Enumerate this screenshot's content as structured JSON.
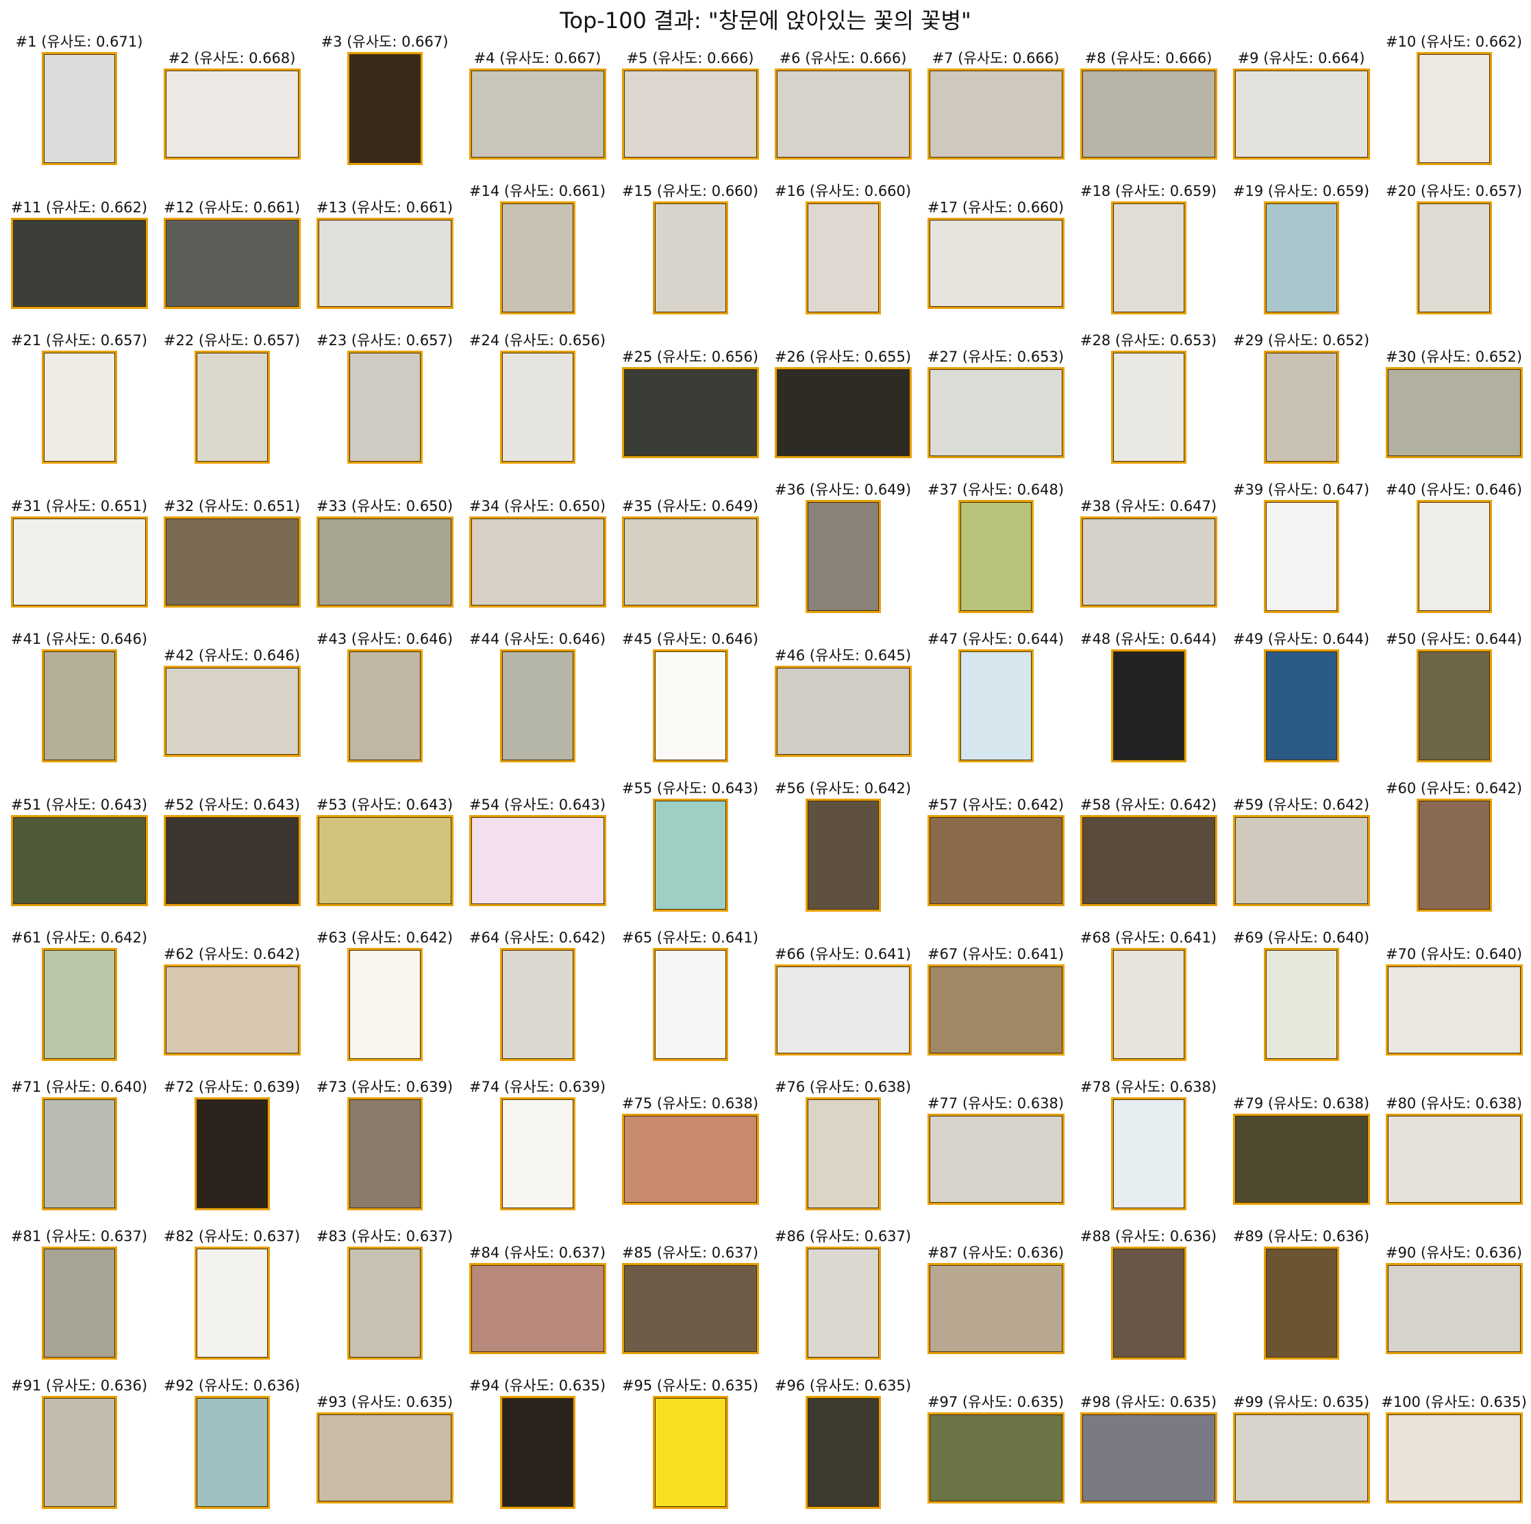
{
  "title": "Top-100 결과: \"창문에 앉아있는 꽃의 꽃병\"",
  "results": [
    {
      "label": "#1 (유사도: 0.671)",
      "orientation": "portrait",
      "tone": "#d9dcd8"
    },
    {
      "label": "#2 (유사도: 0.668)",
      "orientation": "landscape",
      "tone": "#ece9e4"
    },
    {
      "label": "#3 (유사도: 0.667)",
      "orientation": "portrait",
      "tone": "#3a2a1a"
    },
    {
      "label": "#4 (유사도: 0.667)",
      "orientation": "landscape",
      "tone": "#c9c5b8"
    },
    {
      "label": "#5 (유사도: 0.666)",
      "orientation": "landscape",
      "tone": "#dcd6cf"
    },
    {
      "label": "#6 (유사도: 0.666)",
      "orientation": "landscape",
      "tone": "#d8d2cc"
    },
    {
      "label": "#7 (유사도: 0.666)",
      "orientation": "landscape",
      "tone": "#cfc8bc"
    },
    {
      "label": "#8 (유사도: 0.666)",
      "orientation": "landscape",
      "tone": "#b8b4a8"
    },
    {
      "label": "#9 (유사도: 0.664)",
      "orientation": "landscape",
      "tone": "#e4e2dc"
    },
    {
      "label": "#10 (유사도: 0.662)",
      "orientation": "portrait",
      "tone": "#ece8e2"
    },
    {
      "label": "#11 (유사도: 0.662)",
      "orientation": "landscape",
      "tone": "#3b3f38"
    },
    {
      "label": "#12 (유사도: 0.661)",
      "orientation": "landscape",
      "tone": "#5d5e5a"
    },
    {
      "label": "#13 (유사도: 0.661)",
      "orientation": "landscape",
      "tone": "#e2e0dc"
    },
    {
      "label": "#14 (유사도: 0.661)",
      "orientation": "portrait",
      "tone": "#c8c2b2"
    },
    {
      "label": "#15 (유사도: 0.660)",
      "orientation": "portrait",
      "tone": "#d8d4cc"
    },
    {
      "label": "#16 (유사도: 0.660)",
      "orientation": "portrait",
      "tone": "#e0d8d0"
    },
    {
      "label": "#17 (유사도: 0.660)",
      "orientation": "landscape",
      "tone": "#e6e3dd"
    },
    {
      "label": "#18 (유사도: 0.659)",
      "orientation": "portrait",
      "tone": "#e0ddd6"
    },
    {
      "label": "#19 (유사도: 0.659)",
      "orientation": "portrait",
      "tone": "#a9c6cc"
    },
    {
      "label": "#20 (유사도: 0.657)",
      "orientation": "portrait",
      "tone": "#dedbd2"
    },
    {
      "label": "#21 (유사도: 0.657)",
      "orientation": "portrait",
      "tone": "#efece6"
    },
    {
      "label": "#22 (유사도: 0.657)",
      "orientation": "portrait",
      "tone": "#dcd8cc"
    },
    {
      "label": "#23 (유사도: 0.657)",
      "orientation": "portrait",
      "tone": "#cfcbc2"
    },
    {
      "label": "#24 (유사도: 0.656)",
      "orientation": "portrait",
      "tone": "#e6e4de"
    },
    {
      "label": "#25 (유사도: 0.656)",
      "orientation": "landscape",
      "tone": "#3a3c36"
    },
    {
      "label": "#26 (유사도: 0.655)",
      "orientation": "landscape",
      "tone": "#2e2a24"
    },
    {
      "label": "#27 (유사도: 0.653)",
      "orientation": "landscape",
      "tone": "#dcdcd6"
    },
    {
      "label": "#28 (유사도: 0.653)",
      "orientation": "portrait",
      "tone": "#eae8e2"
    },
    {
      "label": "#29 (유사도: 0.652)",
      "orientation": "portrait",
      "tone": "#c9c2b4"
    },
    {
      "label": "#30 (유사도: 0.652)",
      "orientation": "landscape",
      "tone": "#b2b09e"
    },
    {
      "label": "#31 (유사도: 0.651)",
      "orientation": "landscape",
      "tone": "#f0efec"
    },
    {
      "label": "#32 (유사도: 0.651)",
      "orientation": "landscape",
      "tone": "#7a6a52"
    },
    {
      "label": "#33 (유사도: 0.650)",
      "orientation": "landscape",
      "tone": "#a8a492"
    },
    {
      "label": "#34 (유사도: 0.650)",
      "orientation": "landscape",
      "tone": "#d8d0c4"
    },
    {
      "label": "#35 (유사도: 0.649)",
      "orientation": "landscape",
      "tone": "#d6d0c2"
    },
    {
      "label": "#36 (유사도: 0.649)",
      "orientation": "portrait",
      "tone": "#8a8278"
    },
    {
      "label": "#37 (유사도: 0.648)",
      "orientation": "portrait",
      "tone": "#b7c47a"
    },
    {
      "label": "#38 (유사도: 0.647)",
      "orientation": "landscape",
      "tone": "#d6d2ca"
    },
    {
      "label": "#39 (유사도: 0.647)",
      "orientation": "portrait",
      "tone": "#f4f3f1"
    },
    {
      "label": "#40 (유사도: 0.646)",
      "orientation": "portrait",
      "tone": "#efedea"
    },
    {
      "label": "#41 (유사도: 0.646)",
      "orientation": "portrait",
      "tone": "#b4ae98"
    },
    {
      "label": "#42 (유사도: 0.646)",
      "orientation": "landscape",
      "tone": "#d8d2c8"
    },
    {
      "label": "#43 (유사도: 0.646)",
      "orientation": "portrait",
      "tone": "#bfb6a4"
    },
    {
      "label": "#44 (유사도: 0.646)",
      "orientation": "portrait",
      "tone": "#b6b6a8"
    },
    {
      "label": "#45 (유사도: 0.646)",
      "orientation": "portrait",
      "tone": "#fbfaf6"
    },
    {
      "label": "#46 (유사도: 0.645)",
      "orientation": "landscape",
      "tone": "#d0ccc6"
    },
    {
      "label": "#47 (유사도: 0.644)",
      "orientation": "portrait",
      "tone": "#d6e6ee"
    },
    {
      "label": "#48 (유사도: 0.644)",
      "orientation": "portrait",
      "tone": "#232323"
    },
    {
      "label": "#49 (유사도: 0.644)",
      "orientation": "portrait",
      "tone": "#2a5a86"
    },
    {
      "label": "#50 (유사도: 0.644)",
      "orientation": "portrait",
      "tone": "#6e6448"
    },
    {
      "label": "#51 (유사도: 0.643)",
      "orientation": "landscape",
      "tone": "#4e5a38"
    },
    {
      "label": "#52 (유사도: 0.643)",
      "orientation": "landscape",
      "tone": "#3c3530"
    },
    {
      "label": "#53 (유사도: 0.643)",
      "orientation": "landscape",
      "tone": "#d2c47a"
    },
    {
      "label": "#54 (유사도: 0.643)",
      "orientation": "landscape",
      "tone": "#f3dfee"
    },
    {
      "label": "#55 (유사도: 0.643)",
      "orientation": "portrait",
      "tone": "#9dcfc4"
    },
    {
      "label": "#56 (유사도: 0.642)",
      "orientation": "portrait",
      "tone": "#5e5140"
    },
    {
      "label": "#57 (유사도: 0.642)",
      "orientation": "landscape",
      "tone": "#8a6a4a"
    },
    {
      "label": "#58 (유사도: 0.642)",
      "orientation": "landscape",
      "tone": "#5a4c3c"
    },
    {
      "label": "#59 (유사도: 0.642)",
      "orientation": "landscape",
      "tone": "#cfcabd"
    },
    {
      "label": "#60 (유사도: 0.642)",
      "orientation": "portrait",
      "tone": "#8a6a52"
    },
    {
      "label": "#61 (유사도: 0.642)",
      "orientation": "portrait",
      "tone": "#b8c8a8"
    },
    {
      "label": "#62 (유사도: 0.642)",
      "orientation": "landscape",
      "tone": "#d8c8b2"
    },
    {
      "label": "#63 (유사도: 0.642)",
      "orientation": "portrait",
      "tone": "#f8f6ee"
    },
    {
      "label": "#64 (유사도: 0.642)",
      "orientation": "portrait",
      "tone": "#dcd8d0"
    },
    {
      "label": "#65 (유사도: 0.641)",
      "orientation": "portrait",
      "tone": "#f6f5f3"
    },
    {
      "label": "#66 (유사도: 0.641)",
      "orientation": "landscape",
      "tone": "#eaeae8"
    },
    {
      "label": "#67 (유사도: 0.641)",
      "orientation": "landscape",
      "tone": "#a08866"
    },
    {
      "label": "#68 (유사도: 0.641)",
      "orientation": "portrait",
      "tone": "#e8e4dc"
    },
    {
      "label": "#69 (유사도: 0.640)",
      "orientation": "portrait",
      "tone": "#e6e8dc"
    },
    {
      "label": "#70 (유사도: 0.640)",
      "orientation": "landscape",
      "tone": "#eae6e0"
    },
    {
      "label": "#71 (유사도: 0.640)",
      "orientation": "portrait",
      "tone": "#b9bcb2"
    },
    {
      "label": "#72 (유사도: 0.639)",
      "orientation": "portrait",
      "tone": "#2c231c"
    },
    {
      "label": "#73 (유사도: 0.639)",
      "orientation": "portrait",
      "tone": "#8a7c6c"
    },
    {
      "label": "#74 (유사도: 0.639)",
      "orientation": "portrait",
      "tone": "#f8f6f0"
    },
    {
      "label": "#75 (유사도: 0.638)",
      "orientation": "landscape",
      "tone": "#c88a6c"
    },
    {
      "label": "#76 (유사도: 0.638)",
      "orientation": "portrait",
      "tone": "#dcd4c4"
    },
    {
      "label": "#77 (유사도: 0.638)",
      "orientation": "landscape",
      "tone": "#d8d4cc"
    },
    {
      "label": "#78 (유사도: 0.638)",
      "orientation": "portrait",
      "tone": "#e6eef2"
    },
    {
      "label": "#79 (유사도: 0.638)",
      "orientation": "landscape",
      "tone": "#4e4a30"
    },
    {
      "label": "#80 (유사도: 0.638)",
      "orientation": "landscape",
      "tone": "#e6e2da"
    },
    {
      "label": "#81 (유사도: 0.637)",
      "orientation": "portrait",
      "tone": "#a8a494"
    },
    {
      "label": "#82 (유사도: 0.637)",
      "orientation": "portrait",
      "tone": "#f4f2ee"
    },
    {
      "label": "#83 (유사도: 0.637)",
      "orientation": "portrait",
      "tone": "#c8c0b0"
    },
    {
      "label": "#84 (유사도: 0.637)",
      "orientation": "landscape",
      "tone": "#b8887a"
    },
    {
      "label": "#85 (유사도: 0.637)",
      "orientation": "landscape",
      "tone": "#6e5c48"
    },
    {
      "label": "#86 (유사도: 0.637)",
      "orientation": "portrait",
      "tone": "#dcd8d0"
    },
    {
      "label": "#87 (유사도: 0.636)",
      "orientation": "landscape",
      "tone": "#b8a892"
    },
    {
      "label": "#88 (유사도: 0.636)",
      "orientation": "portrait",
      "tone": "#6a5646"
    },
    {
      "label": "#89 (유사도: 0.636)",
      "orientation": "portrait",
      "tone": "#6a5432"
    },
    {
      "label": "#90 (유사도: 0.636)",
      "orientation": "landscape",
      "tone": "#d6d2cc"
    },
    {
      "label": "#91 (유사도: 0.636)",
      "orientation": "portrait",
      "tone": "#c2bcae"
    },
    {
      "label": "#92 (유사도: 0.636)",
      "orientation": "portrait",
      "tone": "#9ec0c0"
    },
    {
      "label": "#93 (유사도: 0.635)",
      "orientation": "landscape",
      "tone": "#c8bca6"
    },
    {
      "label": "#94 (유사도: 0.635)",
      "orientation": "portrait",
      "tone": "#2a231c"
    },
    {
      "label": "#95 (유사도: 0.635)",
      "orientation": "portrait",
      "tone": "#f6e020"
    },
    {
      "label": "#96 (유사도: 0.635)",
      "orientation": "portrait",
      "tone": "#3e3a30"
    },
    {
      "label": "#97 (유사도: 0.635)",
      "orientation": "landscape",
      "tone": "#6a7446"
    },
    {
      "label": "#98 (유사도: 0.635)",
      "orientation": "landscape",
      "tone": "#7a7a84"
    },
    {
      "label": "#99 (유사도: 0.635)",
      "orientation": "landscape",
      "tone": "#d8d4cc"
    },
    {
      "label": "#100 (유사도: 0.635)",
      "orientation": "landscape",
      "tone": "#e8e2d8"
    }
  ],
  "colors": {
    "thumb_border": "#e8a000",
    "background": "#ffffff",
    "text": "#111111"
  }
}
